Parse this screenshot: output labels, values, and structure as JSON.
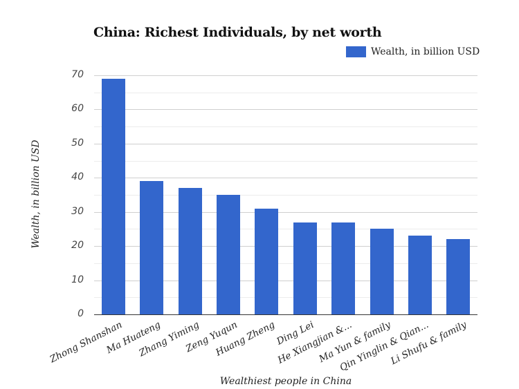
{
  "chart_data": {
    "type": "bar",
    "title": "China: Richest Individuals, by net worth",
    "xlabel": "Wealthiest people in China",
    "ylabel": "Wealth, in billion USD",
    "ylim": [
      0,
      70
    ],
    "yticks": [
      0,
      10,
      20,
      30,
      40,
      50,
      60,
      70
    ],
    "grid": true,
    "legend_position": "top-right",
    "categories": [
      "Zhong Shanshan",
      "Ma Huateng",
      "Zhang Yiming",
      "Zeng Yuqun",
      "Huang Zheng",
      "Ding Lei",
      "He Xiangjian &...",
      "Ma Yun & family",
      "Qin Yinglin & Qian...",
      "Li Shufu & family"
    ],
    "series": [
      {
        "name": "Wealth, in billion USD",
        "color": "#3366cc",
        "values": [
          69,
          39,
          37,
          35,
          31,
          27,
          27,
          25,
          23,
          22
        ]
      }
    ]
  },
  "ui": {
    "legend_label": "Wealth, in billion USD",
    "ytick_labels": [
      "70",
      "60",
      "50",
      "40",
      "30",
      "20",
      "10",
      "0"
    ]
  }
}
